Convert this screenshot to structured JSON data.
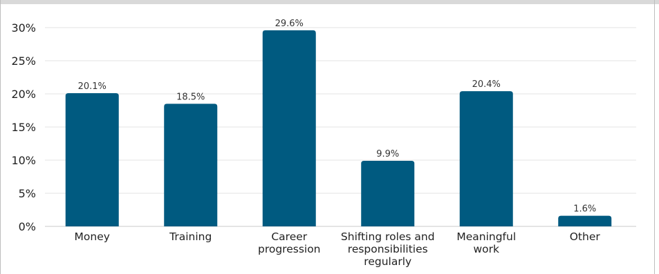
{
  "chart_data": {
    "type": "bar",
    "title": "",
    "xlabel": "",
    "ylabel": "",
    "categories": [
      [
        "Money"
      ],
      [
        "Training"
      ],
      [
        "Career",
        "progression"
      ],
      [
        "Shifting roles and",
        "responsibilities",
        "regularly"
      ],
      [
        "Meaningful",
        "work"
      ],
      [
        "Other"
      ]
    ],
    "values": [
      20.1,
      18.5,
      29.6,
      9.9,
      20.4,
      1.6
    ],
    "data_labels": [
      "20.1%",
      "18.5%",
      "29.6%",
      "9.9%",
      "20.4%",
      "1.6%"
    ],
    "ylim": [
      0,
      30
    ],
    "yticks": [
      0,
      5,
      10,
      15,
      20,
      25,
      30
    ],
    "ytick_labels": [
      "0%",
      "5%",
      "10%",
      "15%",
      "20%",
      "25%",
      "30%"
    ],
    "grid": true,
    "legend": "none",
    "bar_color": "#005a80"
  }
}
